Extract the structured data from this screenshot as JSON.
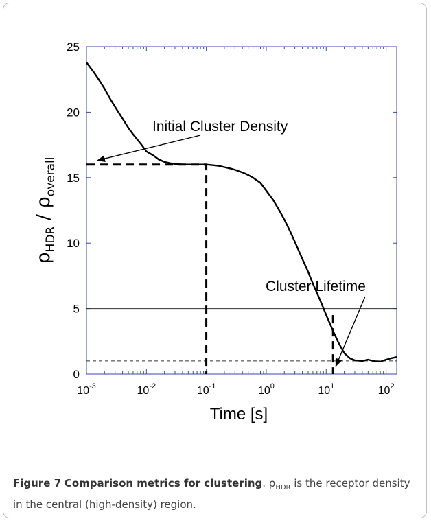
{
  "chart_data": {
    "type": "line",
    "xscale": "log",
    "xlim": [
      0.001,
      150
    ],
    "ylim": [
      0,
      25
    ],
    "xlabel": "Time [s]",
    "ylabel": {
      "rho1": "ρ",
      "sub1": "HDR",
      "slash": " / ",
      "rho2": "ρ",
      "sub2": "overall"
    },
    "x_ticks": [
      {
        "base": "10",
        "exp": "-3",
        "value": 0.001
      },
      {
        "base": "10",
        "exp": "-2",
        "value": 0.01
      },
      {
        "base": "10",
        "exp": "-1",
        "value": 0.1
      },
      {
        "base": "10",
        "exp": "0",
        "value": 1
      },
      {
        "base": "10",
        "exp": "1",
        "value": 10
      },
      {
        "base": "10",
        "exp": "2",
        "value": 100
      }
    ],
    "y_ticks": [
      "0",
      "5",
      "10",
      "15",
      "20",
      "25"
    ],
    "series": [
      {
        "x": [
          0.001,
          0.0013,
          0.0016,
          0.002,
          0.0025,
          0.003,
          0.004,
          0.005,
          0.006,
          0.008,
          0.01,
          0.013,
          0.016,
          0.02,
          0.025,
          0.03,
          0.04,
          0.05,
          0.06,
          0.08,
          0.1,
          0.13,
          0.16,
          0.2,
          0.25,
          0.3,
          0.4,
          0.5,
          0.6,
          0.8,
          1,
          1.3,
          1.6,
          2,
          2.5,
          3,
          4,
          5,
          6,
          8,
          10,
          13,
          16,
          20,
          25,
          30,
          40,
          50,
          60,
          80,
          100,
          120,
          150
        ],
        "y": [
          23.8,
          23.1,
          22.5,
          21.8,
          21.0,
          20.4,
          19.5,
          18.8,
          18.3,
          17.6,
          17.0,
          16.7,
          16.4,
          16.2,
          16.1,
          16.05,
          16.0,
          16.0,
          16.0,
          16.0,
          16.0,
          15.95,
          15.9,
          15.8,
          15.7,
          15.6,
          15.4,
          15.2,
          15.0,
          14.6,
          14.0,
          13.3,
          12.6,
          11.8,
          10.9,
          10.1,
          8.8,
          7.8,
          6.9,
          5.6,
          4.5,
          3.3,
          2.4,
          1.6,
          1.2,
          1.05,
          1.0,
          1.1,
          1.0,
          0.95,
          1.1,
          1.2,
          1.3
        ]
      }
    ],
    "reference_lines": [
      {
        "y": 5,
        "style": "solid"
      },
      {
        "y": 1,
        "style": "dashed"
      }
    ],
    "marker_lines": [
      {
        "style": "dashed",
        "points": [
          [
            0.001,
            16
          ],
          [
            0.1,
            16
          ],
          [
            0.1,
            0
          ]
        ]
      },
      {
        "style": "dashed",
        "points": [
          [
            13,
            4.5
          ],
          [
            13,
            0
          ]
        ]
      }
    ],
    "annotations": [
      {
        "text": "Initial Cluster Density",
        "arrow_to": [
          0.001,
          16
        ]
      },
      {
        "text": "Cluster Lifetime",
        "arrow_to": [
          13,
          0.6
        ]
      }
    ]
  },
  "caption": {
    "label": "Figure 7",
    "title": "Comparison metrics for clustering",
    "rho": "ρ",
    "sub": "HDR",
    "text_before": ". ",
    "text_after": " is the receptor density in the central (high-density) region."
  }
}
